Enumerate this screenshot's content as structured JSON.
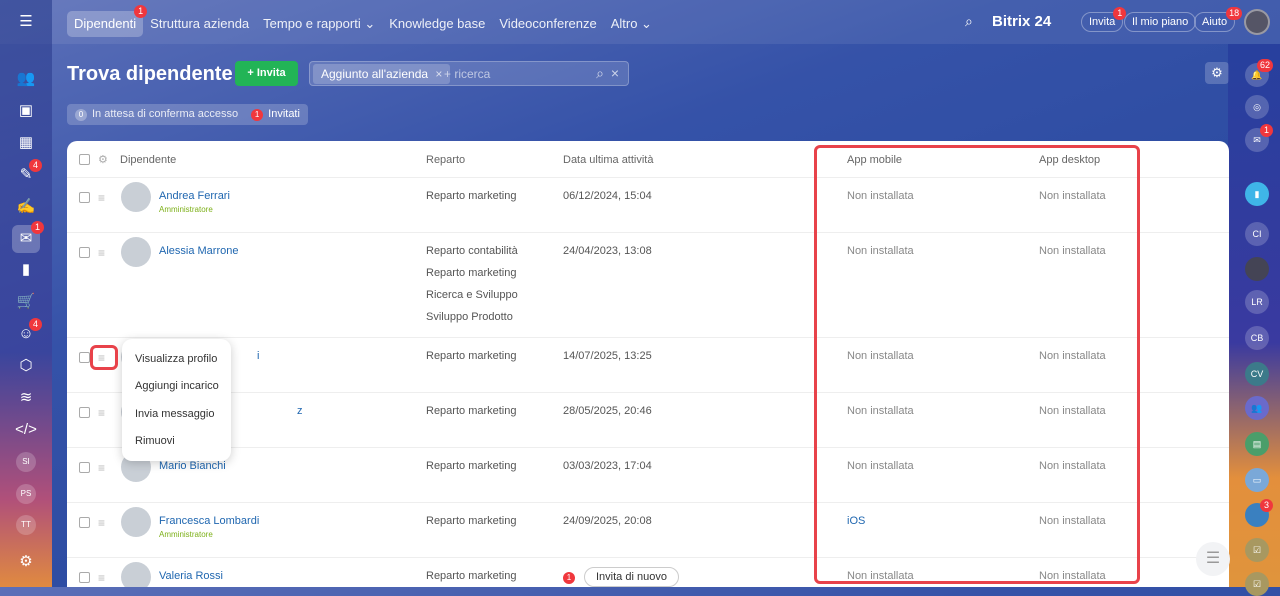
{
  "nav": {
    "items": [
      {
        "label": "Dipendenti",
        "badge": "1",
        "active": true
      },
      {
        "label": "Struttura azienda"
      },
      {
        "label": "Tempo e rapporti ⌄"
      },
      {
        "label": "Knowledge base"
      },
      {
        "label": "Videoconferenze"
      },
      {
        "label": "Altro ⌄"
      }
    ]
  },
  "header": {
    "brand": "Bitrix 24",
    "invite": "Invita",
    "invite_badge": "1",
    "plan": "Il mio piano",
    "help": "Aiuto",
    "help_badge": "18"
  },
  "left_sidebar": {
    "badges": {
      "tasks": "4",
      "chat": "1",
      "bot": "4"
    },
    "avatars": [
      "SI",
      "PS",
      "TT"
    ]
  },
  "right_sidebar": {
    "notif_badge": "62",
    "chat_badge": "1",
    "avatars": [
      "CI",
      "LR",
      "CB",
      "CV"
    ],
    "bot_badge": "3"
  },
  "page": {
    "title": "Trova dipendente",
    "invite_button": "Invita",
    "filter_chip": "Aggiunto all'azienda",
    "search_placeholder": "+ ricerca",
    "pending_count": "0",
    "pending_label": "In attesa di conferma accesso",
    "invited_count": "1",
    "invited_label": "Invitati"
  },
  "table": {
    "columns": [
      "Dipendente",
      "Reparto",
      "Data ultima attività",
      "App mobile",
      "App desktop"
    ],
    "rows": [
      {
        "name": "Andrea Ferrari",
        "role": "Amministratore",
        "dept": [
          "Reparto marketing"
        ],
        "date": "06/12/2024, 15:04",
        "mobile": "Non installata",
        "desktop": "Non installata"
      },
      {
        "name": "Alessia Marrone",
        "role": "",
        "dept": [
          "Reparto contabilità",
          "Reparto marketing",
          "Ricerca e Sviluppo",
          "Sviluppo Prodotto"
        ],
        "date": "24/04/2023, 13:08",
        "mobile": "Non installata",
        "desktop": "Non installata"
      },
      {
        "name": "i",
        "role": "",
        "dept": [
          "Reparto marketing"
        ],
        "date": "14/07/2025, 13:25",
        "mobile": "Non installata",
        "desktop": "Non installata"
      },
      {
        "name": "z",
        "role": "",
        "dept": [
          "Reparto marketing"
        ],
        "date": "28/05/2025, 20:46",
        "mobile": "Non installata",
        "desktop": "Non installata"
      },
      {
        "name": "Mario Bianchi",
        "role": "",
        "dept": [
          "Reparto marketing"
        ],
        "date": "03/03/2023, 17:04",
        "mobile": "Non installata",
        "desktop": "Non installata"
      },
      {
        "name": "Francesca Lombardi",
        "role": "Amministratore",
        "dept": [
          "Reparto marketing"
        ],
        "date": "24/09/2025, 20:08",
        "mobile": "iOS",
        "desktop": "Non installata"
      },
      {
        "name": "Valeria Rossi",
        "role": "",
        "dept": [
          "Reparto marketing"
        ],
        "date": "",
        "reinvite_badge": "1",
        "reinvite": "Invita di nuovo",
        "mobile": "Non installata",
        "desktop": "Non installata"
      }
    ]
  },
  "context_menu": [
    "Visualizza profilo",
    "Aggiungi incarico",
    "Invia messaggio",
    "Rimuovi"
  ],
  "colors": {
    "accent_green": "#22b456",
    "link": "#2067b0",
    "highlight": "#e8424a",
    "admin": "#7db019"
  }
}
